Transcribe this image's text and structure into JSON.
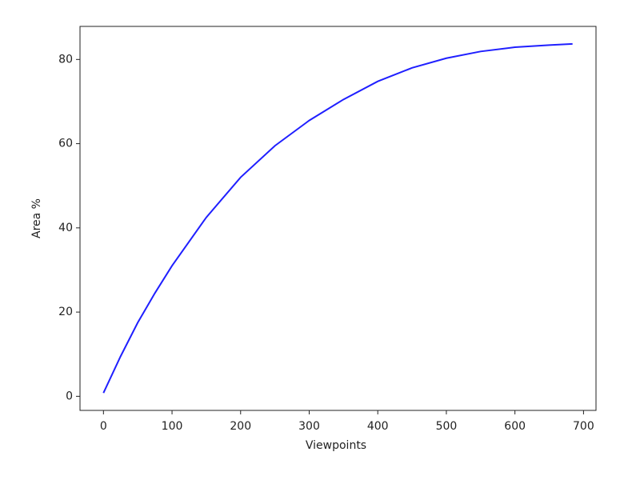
{
  "chart_data": {
    "type": "line",
    "xlabel": "Viewpoints",
    "ylabel": "Area %",
    "x": [
      0,
      25,
      50,
      75,
      100,
      150,
      200,
      250,
      300,
      350,
      400,
      450,
      500,
      550,
      600,
      650,
      684
    ],
    "values": [
      0.8,
      9.5,
      17.5,
      24.5,
      31,
      42.5,
      52,
      59.5,
      65.5,
      70.5,
      74.8,
      78,
      80.3,
      81.9,
      82.9,
      83.4,
      83.7
    ],
    "color": "#1f1fff",
    "xlim": [
      -34.2,
      718.2
    ],
    "ylim": [
      -3.35,
      87.85
    ],
    "xticks": [
      0,
      100,
      200,
      300,
      400,
      500,
      600,
      700
    ],
    "yticks": [
      0,
      20,
      40,
      60,
      80
    ],
    "grid": false
  }
}
